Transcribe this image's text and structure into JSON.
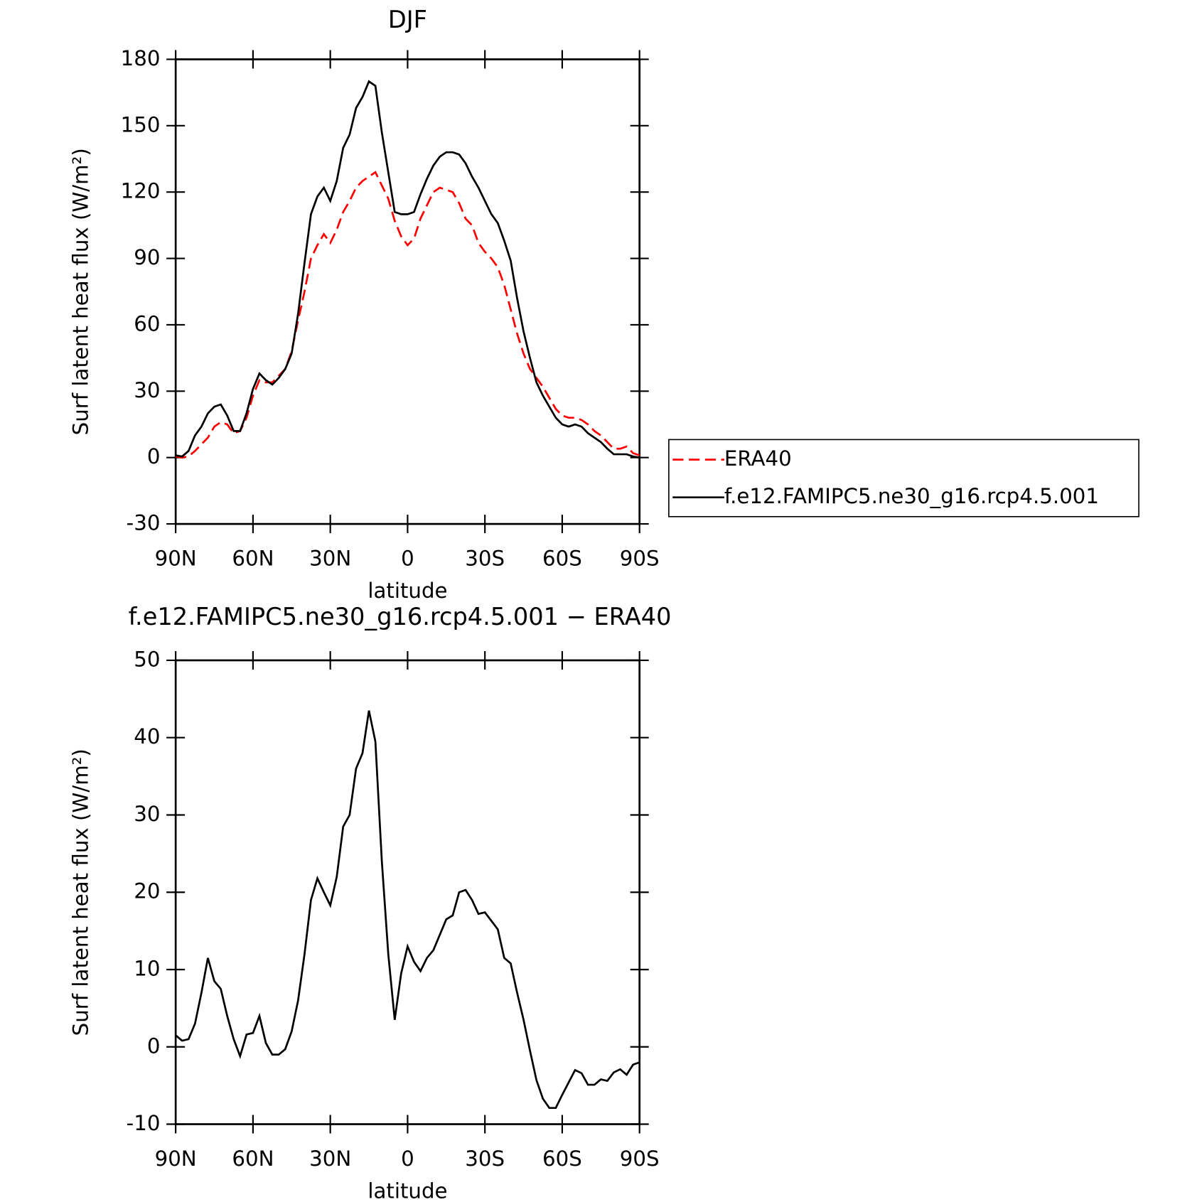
{
  "chart_data": [
    {
      "type": "line",
      "title": "DJF",
      "ylabel": "Surf latent heat flux (W/m²)",
      "xlabel": "latitude",
      "x": [
        90,
        87.5,
        85,
        82.5,
        80,
        77.5,
        75,
        72.5,
        70,
        67.5,
        65,
        62.5,
        60,
        57.5,
        55,
        52.5,
        50,
        47.5,
        45,
        42.5,
        40,
        37.5,
        35,
        32.5,
        30,
        27.5,
        25,
        22.5,
        20,
        17.5,
        15,
        12.5,
        10,
        7.5,
        5,
        2.5,
        0,
        -2.5,
        -5,
        -7.5,
        -10,
        -12.5,
        -15,
        -17.5,
        -20,
        -22.5,
        -25,
        -27.5,
        -30,
        -32.5,
        -35,
        -37.5,
        -40,
        -42.5,
        -45,
        -47.5,
        -50,
        -52.5,
        -55,
        -57.5,
        -60,
        -62.5,
        -65,
        -67.5,
        -70,
        -72.5,
        -75,
        -77.5,
        -80,
        -82.5,
        -85,
        -87.5,
        -90
      ],
      "xlim": [
        90,
        -90
      ],
      "xticks": [
        {
          "value": 90,
          "label": "90N"
        },
        {
          "value": 60,
          "label": "60N"
        },
        {
          "value": 30,
          "label": "30N"
        },
        0,
        {
          "value": -30,
          "label": "30S"
        },
        {
          "value": -60,
          "label": "60S"
        },
        {
          "value": -90,
          "label": "90S"
        }
      ],
      "ylim": [
        -30,
        180
      ],
      "yticks": [
        -30,
        0,
        30,
        60,
        90,
        120,
        150,
        180
      ],
      "legend": "right",
      "series": [
        {
          "name": "ERA40",
          "color": "#ff0000",
          "style": "dashed",
          "values": [
            0.5,
            0,
            0.5,
            3,
            6,
            9,
            14,
            16,
            15,
            11,
            12,
            18,
            28,
            35,
            34,
            34,
            37,
            40,
            48,
            62,
            75,
            90,
            96,
            101,
            97,
            103,
            111,
            116,
            122,
            125,
            127,
            129,
            123,
            117,
            107,
            100,
            96,
            99,
            108,
            114,
            120,
            122,
            121,
            120,
            115,
            108,
            105,
            97,
            93,
            90,
            86,
            78,
            67,
            56,
            47,
            40,
            36,
            32,
            27,
            22,
            19,
            18,
            18,
            17,
            15,
            12,
            10,
            7,
            4,
            4,
            5,
            2,
            1
          ]
        },
        {
          "name": "f.e12.FAMIPC5.ne30_g16.rcp4.5.001",
          "color": "#000000",
          "style": "solid",
          "values": [
            1,
            0.5,
            3,
            10,
            14,
            20,
            23,
            24,
            19,
            12,
            12,
            20,
            31,
            38,
            35,
            33,
            36,
            40,
            47,
            65,
            88,
            110,
            118,
            122,
            116,
            125,
            140,
            146,
            158,
            163,
            170,
            168,
            147,
            129,
            111,
            110,
            110,
            111,
            119,
            126,
            132,
            136,
            138,
            138,
            137,
            133,
            127,
            122,
            116,
            110,
            106,
            98,
            89,
            72,
            57,
            45,
            34,
            28,
            23,
            18,
            15,
            14,
            15,
            14,
            11,
            9,
            7,
            4,
            1.5,
            1.5,
            1.5,
            0.5,
            0
          ]
        }
      ]
    },
    {
      "type": "line",
      "title": "f.e12.FAMIPC5.ne30_g16.rcp4.5.001 − ERA40",
      "ylabel": "Surf latent heat flux (W/m²)",
      "xlabel": "latitude",
      "x": [
        90,
        87.5,
        85,
        82.5,
        80,
        77.5,
        75,
        72.5,
        70,
        67.5,
        65,
        62.5,
        60,
        57.5,
        55,
        52.5,
        50,
        47.5,
        45,
        42.5,
        40,
        37.5,
        35,
        32.5,
        30,
        27.5,
        25,
        22.5,
        20,
        17.5,
        15,
        12.5,
        10,
        7.5,
        5,
        2.5,
        0,
        -2.5,
        -5,
        -7.5,
        -10,
        -12.5,
        -15,
        -17.5,
        -20,
        -22.5,
        -25,
        -27.5,
        -30,
        -32.5,
        -35,
        -37.5,
        -40,
        -42.5,
        -45,
        -47.5,
        -50,
        -52.5,
        -55,
        -57.5,
        -60,
        -62.5,
        -65,
        -67.5,
        -70,
        -72.5,
        -75,
        -77.5,
        -80,
        -82.5,
        -85,
        -87.5,
        -90
      ],
      "xlim": [
        90,
        -90
      ],
      "xticks": [
        {
          "value": 90,
          "label": "90N"
        },
        {
          "value": 60,
          "label": "60N"
        },
        {
          "value": 30,
          "label": "30N"
        },
        0,
        {
          "value": -30,
          "label": "30S"
        },
        {
          "value": -60,
          "label": "60S"
        },
        {
          "value": -90,
          "label": "90S"
        }
      ],
      "ylim": [
        -10,
        50
      ],
      "yticks": [
        -10,
        0,
        10,
        20,
        30,
        40,
        50
      ],
      "series": [
        {
          "color": "#000000",
          "style": "solid",
          "values": [
            1.5,
            0.8,
            1,
            3,
            7,
            11.5,
            8.5,
            7.5,
            4,
            1,
            -1.2,
            1.6,
            1.8,
            4,
            0.5,
            -1,
            -1,
            -0.3,
            2,
            6,
            12,
            19,
            21.8,
            20,
            18.3,
            22,
            28.5,
            30,
            36,
            38,
            43.5,
            39.5,
            24,
            12,
            3.5,
            9.5,
            13,
            11,
            9.8,
            11.5,
            12.5,
            14.5,
            16.5,
            17,
            20,
            20.3,
            19,
            17.2,
            17.4,
            16.3,
            15.2,
            11.5,
            10.8,
            7,
            3.5,
            -0.5,
            -4.3,
            -6.7,
            -7.9,
            -7.9,
            -6.2,
            -4.6,
            -3,
            -3.4,
            -4.9,
            -4.9,
            -4.2,
            -4.4,
            -3.3,
            -2.9,
            -3.6,
            -2.3,
            -2
          ]
        }
      ]
    }
  ]
}
